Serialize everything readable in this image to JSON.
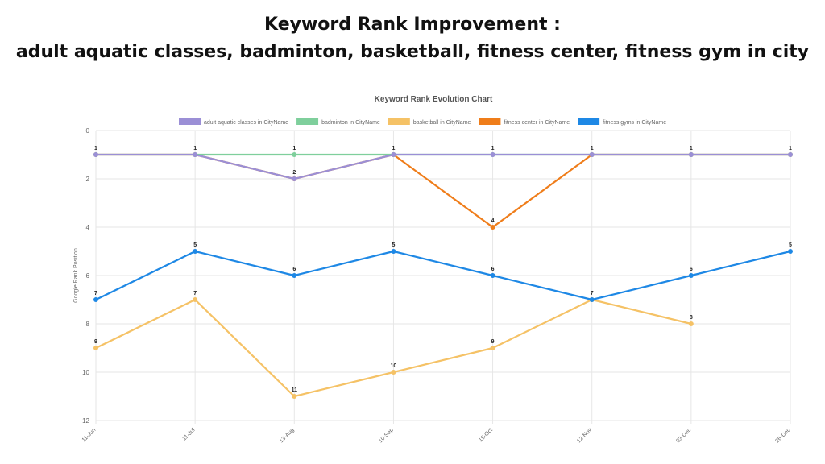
{
  "headline": {
    "line1": "Keyword Rank Improvement :",
    "line2": "adult aquatic classes, badminton, basketball, fitness center, fitness gym in city"
  },
  "chart_data": {
    "type": "line",
    "title": "Keyword Rank Evolution Chart",
    "xlabel": "",
    "ylabel": "Google Rank Position",
    "y_reversed": true,
    "ylim": [
      0,
      12
    ],
    "yticks": [
      0,
      2,
      4,
      6,
      8,
      10,
      12
    ],
    "grid": true,
    "legend": "top",
    "categories": [
      "11-Jun",
      "11-Jul",
      "13-Aug",
      "10-Sep",
      "15-Oct",
      "12-Nov",
      "03-Dec",
      "26-Dec"
    ],
    "series": [
      {
        "name": "basketball in CityName",
        "color": "#f5c266",
        "values": [
          9,
          7,
          11,
          10,
          9,
          7,
          8,
          null
        ]
      },
      {
        "name": "fitness gyms in CityName",
        "color": "#1e88e5",
        "values": [
          7,
          5,
          6,
          5,
          6,
          7,
          6,
          5
        ]
      },
      {
        "name": "fitness center in CityName",
        "color": "#ef7d1a",
        "values": [
          1,
          1,
          2,
          1,
          4,
          1,
          1,
          1
        ]
      },
      {
        "name": "badminton in CityName",
        "color": "#7fcf9c",
        "values": [
          1,
          1,
          1,
          1,
          1,
          1,
          1,
          1
        ]
      },
      {
        "name": "adult aquatic classes in CityName",
        "color": "#9b8fd6",
        "values": [
          1,
          1,
          2,
          1,
          1,
          1,
          1,
          1
        ]
      }
    ],
    "legend_order": [
      "adult aquatic classes in CityName",
      "badminton in CityName",
      "basketball in CityName",
      "fitness center in CityName",
      "fitness gyms in CityName"
    ],
    "data_labels": [
      {
        "x": 0,
        "y": 1,
        "text": "1"
      },
      {
        "x": 1,
        "y": 1,
        "text": "1"
      },
      {
        "x": 2,
        "y": 1,
        "text": "1"
      },
      {
        "x": 2,
        "y": 2,
        "text": "2"
      },
      {
        "x": 3,
        "y": 1,
        "text": "1"
      },
      {
        "x": 4,
        "y": 1,
        "text": "1"
      },
      {
        "x": 4,
        "y": 4,
        "text": "4"
      },
      {
        "x": 5,
        "y": 1,
        "text": "1"
      },
      {
        "x": 6,
        "y": 1,
        "text": "1"
      },
      {
        "x": 7,
        "y": 1,
        "text": "1"
      },
      {
        "x": 0,
        "y": 7,
        "text": "7"
      },
      {
        "x": 1,
        "y": 5,
        "text": "5"
      },
      {
        "x": 2,
        "y": 6,
        "text": "6"
      },
      {
        "x": 3,
        "y": 5,
        "text": "5"
      },
      {
        "x": 4,
        "y": 6,
        "text": "6"
      },
      {
        "x": 5,
        "y": 7,
        "text": "7"
      },
      {
        "x": 6,
        "y": 6,
        "text": "6"
      },
      {
        "x": 7,
        "y": 5,
        "text": "5"
      },
      {
        "x": 0,
        "y": 9,
        "text": "9"
      },
      {
        "x": 1,
        "y": 7,
        "text": "7"
      },
      {
        "x": 2,
        "y": 11,
        "text": "11"
      },
      {
        "x": 3,
        "y": 10,
        "text": "10"
      },
      {
        "x": 4,
        "y": 9,
        "text": "9"
      },
      {
        "x": 6,
        "y": 8,
        "text": "8"
      }
    ]
  }
}
